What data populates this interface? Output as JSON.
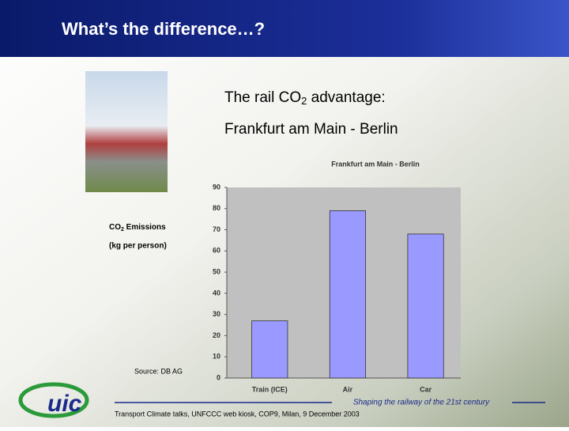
{
  "slide": {
    "title": "What’s the difference…?",
    "heading_1": [
      "The rail CO",
      "2",
      " advantage:"
    ],
    "heading_2": "Frankfurt am Main - Berlin",
    "footer_tagline": "Shaping the railway of the 21st century",
    "footer_note": "Transport Climate talks, UNFCCC web kiosk, COP9, Milan, 9 December 2003"
  },
  "chart_data": {
    "type": "bar",
    "title": "Frankfurt am Main - Berlin",
    "y_label": [
      "CO",
      "2",
      " Emissions"
    ],
    "y_label_2": "(kg per person)",
    "source": "Source: DB AG",
    "categories": [
      "Train (ICE)",
      "Air",
      "Car"
    ],
    "values": [
      27,
      79,
      68
    ],
    "color": "#9999ff",
    "ylim": [
      0,
      90
    ],
    "yticks": [
      0,
      10,
      20,
      30,
      40,
      50,
      60,
      70,
      80,
      90
    ],
    "grid": false
  }
}
